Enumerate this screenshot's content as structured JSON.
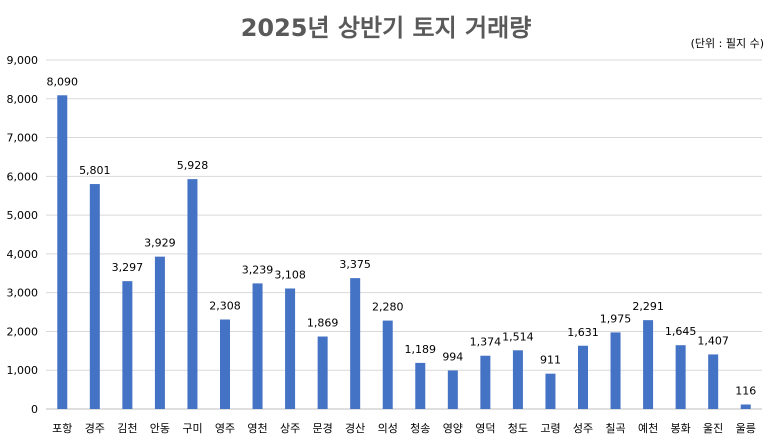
{
  "chart_data": {
    "type": "bar",
    "title": "2025년 상반기 토지 거래량",
    "unit_note": "(단위 : 필지 수)",
    "categories": [
      "포항",
      "경주",
      "김천",
      "안동",
      "구미",
      "영주",
      "영천",
      "상주",
      "문경",
      "경산",
      "의성",
      "청송",
      "영양",
      "영덕",
      "청도",
      "고령",
      "성주",
      "칠곡",
      "예천",
      "봉화",
      "울진",
      "울릉"
    ],
    "values": [
      8090,
      5801,
      3297,
      3929,
      5928,
      2308,
      3239,
      3108,
      1869,
      3375,
      2280,
      1189,
      994,
      1374,
      1514,
      911,
      1631,
      1975,
      2291,
      1645,
      1407,
      116
    ],
    "ylim": [
      0,
      9000
    ],
    "yticks": [
      0,
      1000,
      2000,
      3000,
      4000,
      5000,
      6000,
      7000,
      8000,
      9000
    ],
    "grid": true,
    "data_labels": true,
    "bar_color": "#4472C4"
  }
}
